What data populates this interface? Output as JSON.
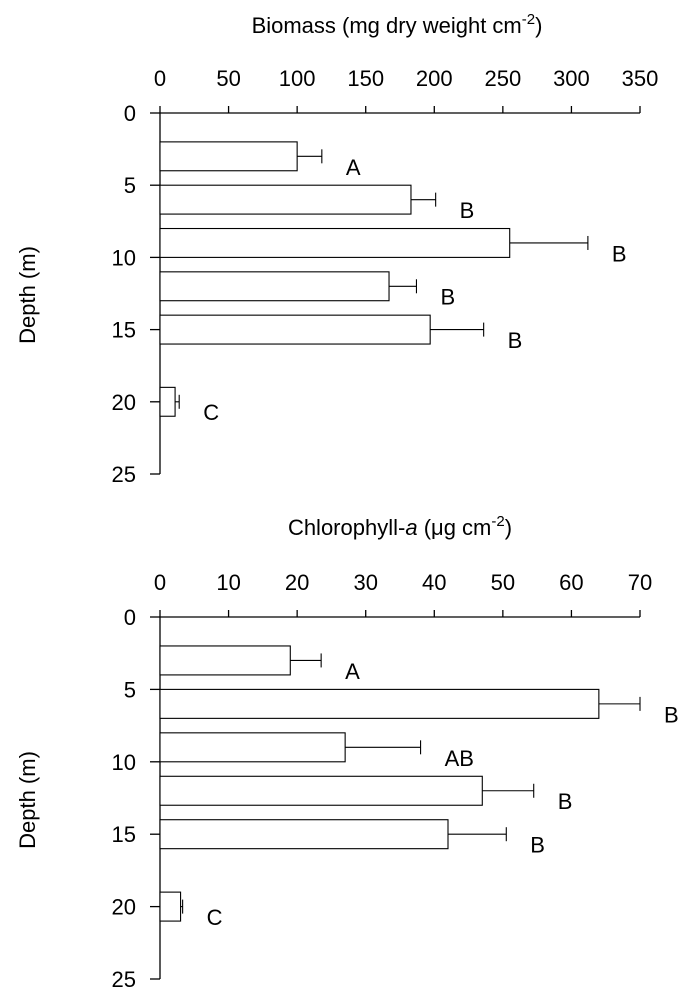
{
  "chart_data": [
    {
      "type": "bar",
      "orientation": "horizontal",
      "title": "Biomass (mg dry weight cm",
      "title_sup": "-2",
      "title_close": ")",
      "ylabel": "Depth (m)",
      "xlim": [
        0,
        350
      ],
      "xticks": [
        "0",
        "50",
        "100",
        "150",
        "200",
        "250",
        "300",
        "350"
      ],
      "ylim": [
        0,
        25
      ],
      "yticks": [
        "0",
        "5",
        "10",
        "15",
        "20",
        "25"
      ],
      "grid": false,
      "bars": [
        {
          "y0": 2,
          "y1": 4,
          "value": 100,
          "error": 18,
          "label": "A"
        },
        {
          "y0": 5,
          "y1": 7,
          "value": 183,
          "error": 18,
          "label": "B"
        },
        {
          "y0": 8,
          "y1": 10,
          "value": 255,
          "error": 57,
          "label": "B"
        },
        {
          "y0": 11,
          "y1": 13,
          "value": 167,
          "error": 20,
          "label": "B"
        },
        {
          "y0": 14,
          "y1": 16,
          "value": 197,
          "error": 39,
          "label": "B"
        },
        {
          "y0": 19,
          "y1": 21,
          "value": 11,
          "error": 3,
          "label": "C"
        }
      ]
    },
    {
      "type": "bar",
      "orientation": "horizontal",
      "title_pre": "Chlorophyll-",
      "title_italic": "a",
      "title_mid": " (μg  cm",
      "title_sup": "-2",
      "title_close": ")",
      "ylabel": "Depth (m)",
      "xlim": [
        0,
        70
      ],
      "xticks": [
        "0",
        "10",
        "20",
        "30",
        "40",
        "50",
        "60",
        "70"
      ],
      "ylim": [
        0,
        25
      ],
      "yticks": [
        "0",
        "5",
        "10",
        "15",
        "20",
        "25"
      ],
      "grid": false,
      "bars": [
        {
          "y0": 2,
          "y1": 4,
          "value": 19,
          "error": 4.5,
          "label": "A"
        },
        {
          "y0": 5,
          "y1": 7,
          "value": 64,
          "error": 6,
          "label": "B"
        },
        {
          "y0": 8,
          "y1": 10,
          "value": 27,
          "error": 11,
          "label": "AB"
        },
        {
          "y0": 11,
          "y1": 13,
          "value": 47,
          "error": 7.5,
          "label": "B"
        },
        {
          "y0": 14,
          "y1": 16,
          "value": 42,
          "error": 8.5,
          "label": "B"
        },
        {
          "y0": 19,
          "y1": 21,
          "value": 3,
          "error": 0.3,
          "label": "C"
        }
      ]
    }
  ]
}
